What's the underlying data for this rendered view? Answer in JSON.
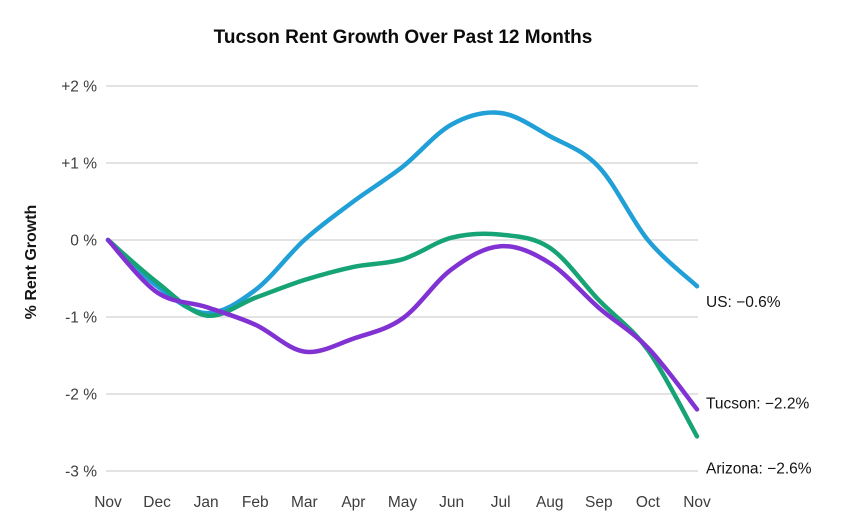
{
  "page": {
    "background": "#ffffff",
    "gridline_color": "#dadada",
    "tick_text_color": "#3d3d3d"
  },
  "chart_data": {
    "type": "line",
    "title": "Tucson Rent Growth Over Past 12 Months",
    "xlabel": "",
    "ylabel": "% Rent Growth",
    "x_labels": [
      "Nov",
      "Dec",
      "Jan",
      "Feb",
      "Mar",
      "Apr",
      "May",
      "Jun",
      "Jul",
      "Aug",
      "Sep",
      "Oct",
      "Nov"
    ],
    "y_ticks": [
      {
        "label": "+2 %",
        "value": 2
      },
      {
        "label": "+1 %",
        "value": 1
      },
      {
        "label": "0 %",
        "value": 0
      },
      {
        "label": "-1 %",
        "value": -1
      },
      {
        "label": "-2 %",
        "value": -2
      },
      {
        "label": "-3 %",
        "value": -3
      }
    ],
    "ylim": [
      -3.4,
      2.4
    ],
    "grid": "horizontal-only",
    "legend_position": "end-of-line-labels-right",
    "series": [
      {
        "name": "US",
        "color": "#219fd7",
        "values": [
          0,
          -0.6,
          -0.95,
          -0.65,
          0,
          0.5,
          0.95,
          1.5,
          1.65,
          1.35,
          0.95,
          0,
          -0.6
        ],
        "final_value": -0.6,
        "end_label": "US: −0.6%",
        "label_dy": 21
      },
      {
        "name": "Tucson",
        "color": "#8132d2",
        "values": [
          0,
          -0.68,
          -0.87,
          -1.1,
          -1.45,
          -1.28,
          -1.02,
          -0.38,
          -0.08,
          -0.3,
          -0.88,
          -1.4,
          -2.2
        ],
        "final_value": -2.2,
        "end_label": "Tucson: −2.2%",
        "label_dy": -1
      },
      {
        "name": "Arizona",
        "color": "#16a376",
        "values": [
          0,
          -0.55,
          -0.98,
          -0.75,
          -0.52,
          -0.35,
          -0.25,
          0.03,
          0.07,
          -0.1,
          -0.78,
          -1.43,
          -2.55
        ],
        "final_value": -2.6,
        "end_label": "Arizona: −2.6%",
        "label_dy": 37
      }
    ]
  }
}
